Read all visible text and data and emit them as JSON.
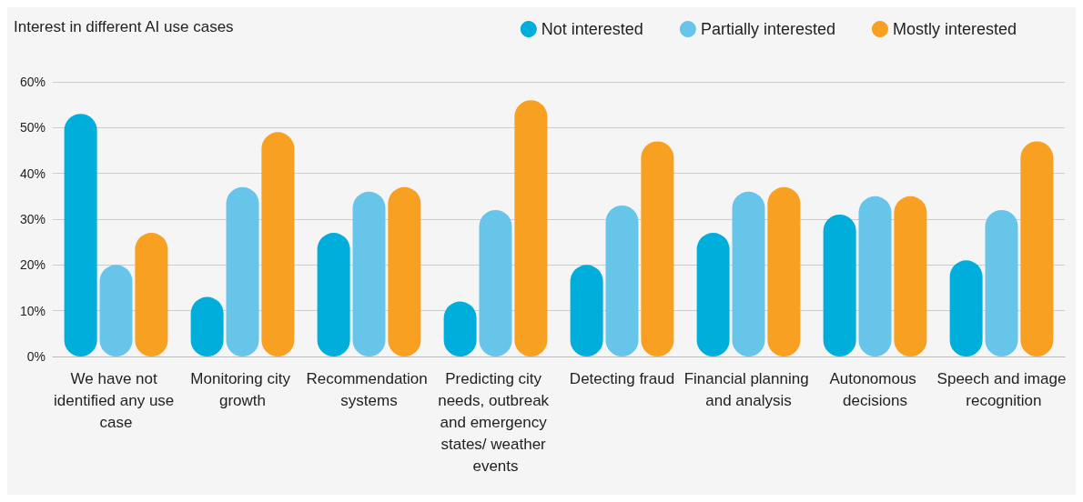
{
  "chart_data": {
    "type": "bar",
    "title": "Interest in different AI use cases",
    "categories": [
      "We have not identified any use case",
      "Monitoring city growth",
      "Recommendation systems",
      "Predicting city needs, outbreak and emergency states/ weather events",
      "Detecting fraud",
      "Financial planning and analysis",
      "Autonomous decisions",
      "Speech and image recognition"
    ],
    "series": [
      {
        "name": "Not interested",
        "color": "#00aedb",
        "values": [
          53,
          13,
          27,
          12,
          20,
          27,
          31,
          21
        ]
      },
      {
        "name": "Partially interested",
        "color": "#66c5e8",
        "values": [
          20,
          37,
          36,
          32,
          33,
          36,
          35,
          32
        ]
      },
      {
        "name": "Mostly interested",
        "color": "#f7a021",
        "values": [
          27,
          49,
          37,
          56,
          47,
          37,
          35,
          47
        ]
      }
    ],
    "ylim": [
      0,
      60
    ],
    "yticks": [
      {
        "value": 0,
        "label": "0%"
      },
      {
        "value": 10,
        "label": "10%"
      },
      {
        "value": 20,
        "label": "20%"
      },
      {
        "value": 30,
        "label": "30%"
      },
      {
        "value": 40,
        "label": "40%"
      },
      {
        "value": 50,
        "label": "50%"
      },
      {
        "value": 60,
        "label": "60%"
      }
    ],
    "grid": "y",
    "legend": "top right"
  }
}
